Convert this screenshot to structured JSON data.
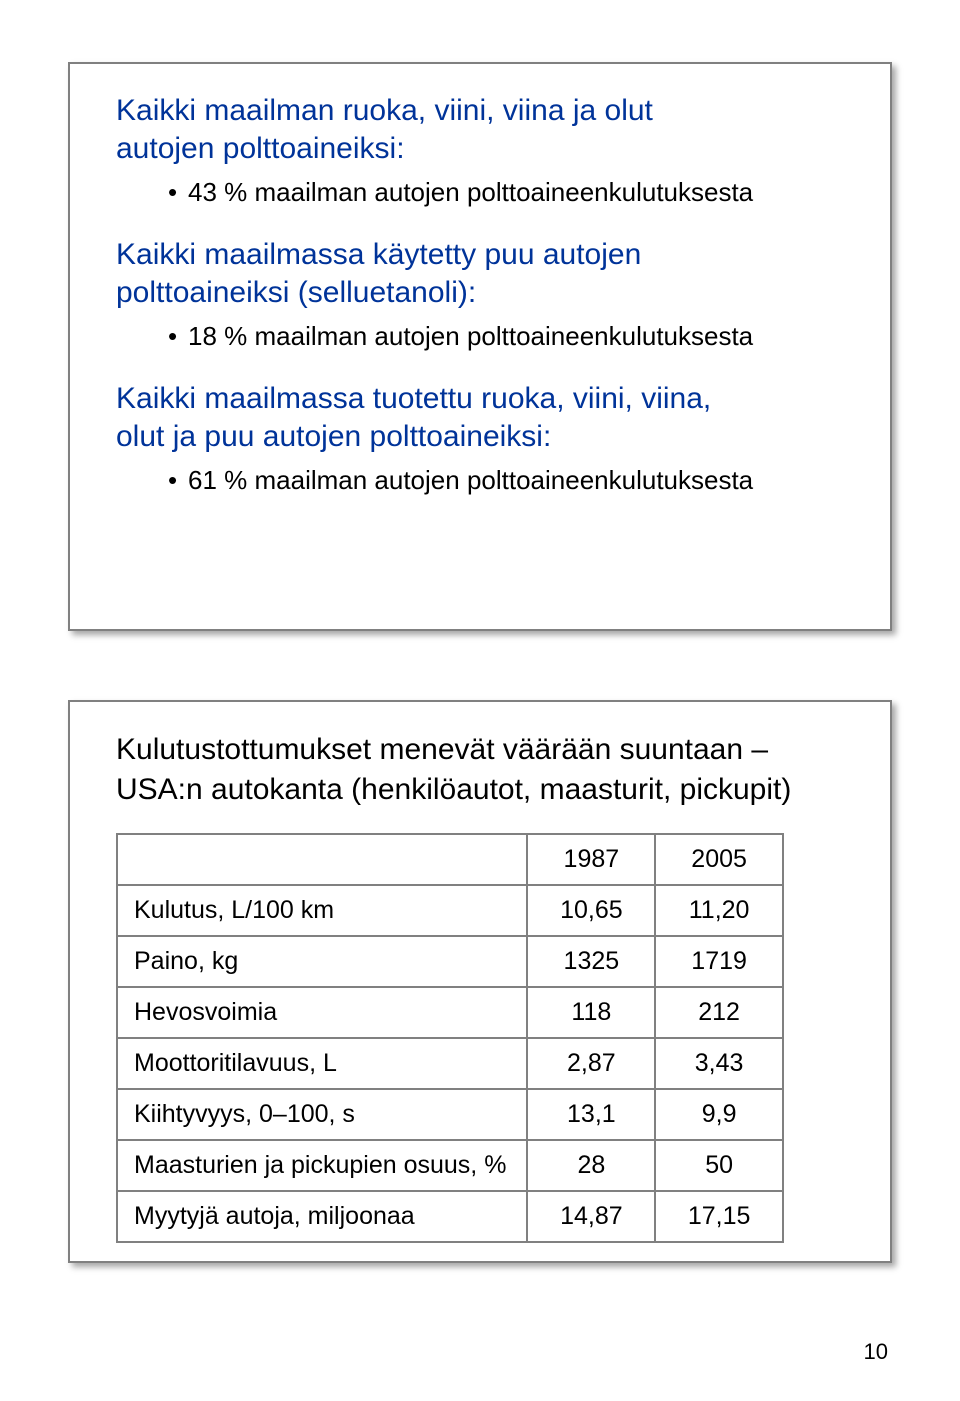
{
  "panel1": {
    "groups": [
      {
        "heading_lines": [
          "Kaikki maailman ruoka, viini, viina ja olut",
          "autojen polttoaineiksi:"
        ],
        "bullets": [
          "43 % maailman autojen polttoaineenkulutuksesta"
        ]
      },
      {
        "heading_lines": [
          "Kaikki maailmassa käytetty puu autojen",
          "polttoaineiksi (selluetanoli):"
        ],
        "bullets": [
          "18 % maailman autojen polttoaineenkulutuksesta"
        ]
      },
      {
        "heading_lines": [
          "Kaikki maailmassa tuotettu ruoka, viini, viina,",
          "olut ja puu autojen polttoaineiksi:"
        ],
        "bullets": [
          "61 % maailman autojen polttoaineenkulutuksesta"
        ]
      }
    ]
  },
  "panel2": {
    "heading_lines": [
      "Kulutustottumukset menevät väärään suuntaan –",
      "USA:n autokanta (henkilöautot, maasturit, pickupit)"
    ],
    "table": {
      "col_headers": [
        "1987",
        "2005"
      ],
      "rows": [
        {
          "label": "Kulutus, L/100 km",
          "values": [
            "10,65",
            "11,20"
          ]
        },
        {
          "label": "Paino, kg",
          "values": [
            "1325",
            "1719"
          ]
        },
        {
          "label": "Hevosvoimia",
          "values": [
            "118",
            "212"
          ]
        },
        {
          "label": "Moottoritilavuus, L",
          "values": [
            "2,87",
            "3,43"
          ]
        },
        {
          "label": "Kiihtyvyys, 0–100, s",
          "values": [
            "13,1",
            "9,9"
          ]
        },
        {
          "label": "Maasturien ja pickupien osuus, %",
          "values": [
            "28",
            "50"
          ]
        },
        {
          "label": "Myytyjä autoja, miljoonaa",
          "values": [
            "14,87",
            "17,15"
          ]
        }
      ]
    }
  },
  "page_number": "10",
  "colors": {
    "heading_blue": "#003399",
    "border_gray": "#808080",
    "text_black": "#000000",
    "background": "#ffffff"
  }
}
